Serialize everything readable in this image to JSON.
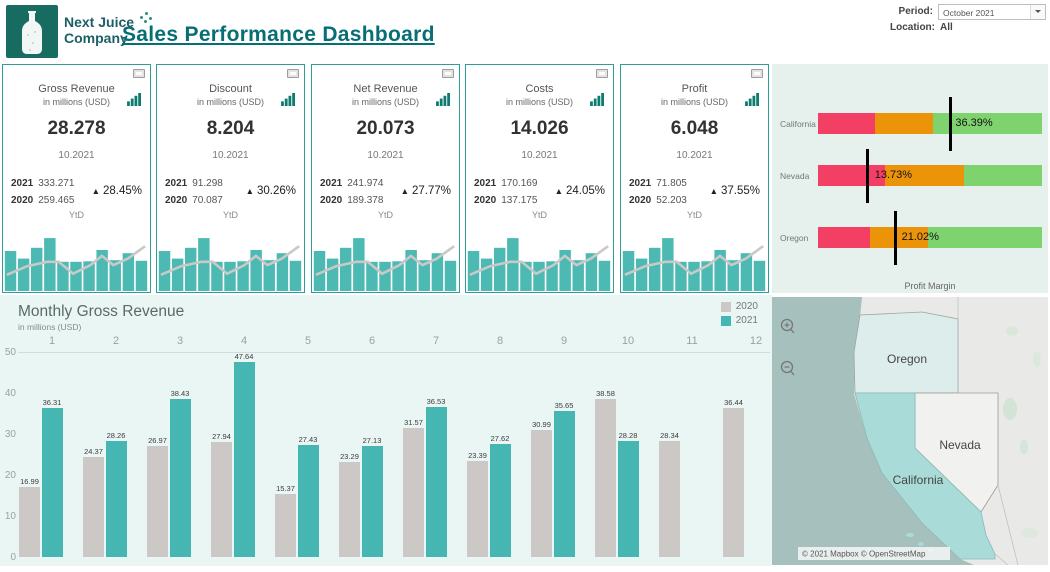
{
  "header": {
    "logo_line1": "Next Juice",
    "logo_line2": "Company",
    "title": "Sales Performance Dashboard",
    "period_label": "Period:",
    "period_value": "October 2021",
    "location_label": "Location:",
    "location_value": "All"
  },
  "colors": {
    "brand_teal": "#086e76",
    "card_border": "#2f9e96",
    "spark_bar": "#4cb9b3",
    "spark_line": "#c9c9c7",
    "bar_2020": "#cbc8c6",
    "bar_2021": "#45b6b1",
    "bullet_pink": "#f23f63",
    "bullet_orange": "#ec9409",
    "bullet_green": "#7ed36f",
    "panel_mint": "#e6f1ee"
  },
  "kpi": {
    "subtitle": "in millions (USD)",
    "date": "10.2021",
    "ytd_label": "YtD",
    "up_icon": "▲",
    "year_labels": [
      "2021",
      "2020"
    ],
    "cards": [
      {
        "title": "Gross Revenue",
        "value": "28.278",
        "y2021": "333.271",
        "y2020": "259.465",
        "delta": "28.45%"
      },
      {
        "title": "Discount",
        "value": "8.204",
        "y2021": "91.298",
        "y2020": "70.087",
        "delta": "30.26%"
      },
      {
        "title": "Net Revenue",
        "value": "20.073",
        "y2021": "241.974",
        "y2020": "189.378",
        "delta": "27.77%"
      },
      {
        "title": "Costs",
        "value": "14.026",
        "y2021": "170.169",
        "y2020": "137.175",
        "delta": "24.05%"
      },
      {
        "title": "Profit",
        "value": "6.048",
        "y2021": "71.805",
        "y2020": "52.203",
        "delta": "37.55%"
      }
    ],
    "sparkline": {
      "bars": [
        0.74,
        0.6,
        0.8,
        0.98,
        0.54,
        0.54,
        0.55,
        0.76,
        0.57,
        0.7,
        0.56
      ],
      "line": [
        [
          0.02,
          0.7
        ],
        [
          0.16,
          0.54
        ],
        [
          0.3,
          0.46
        ],
        [
          0.38,
          0.46
        ],
        [
          0.48,
          0.68
        ],
        [
          0.6,
          0.52
        ],
        [
          0.68,
          0.35
        ],
        [
          0.76,
          0.52
        ],
        [
          0.86,
          0.4
        ],
        [
          0.98,
          0.17
        ]
      ]
    }
  },
  "chart_data": [
    {
      "type": "bar",
      "subtype": "horizontal-stacked-bullet",
      "title": "Profit Margin",
      "categories": [
        "California",
        "Nevada",
        "Oregon"
      ],
      "series": [
        {
          "name": "segment-pink",
          "values_pct": [
            25.5,
            30.0,
            23.0
          ]
        },
        {
          "name": "segment-orange",
          "values_pct": [
            26.0,
            35.0,
            26.0
          ]
        },
        {
          "name": "segment-green",
          "values_pct": [
            48.5,
            35.0,
            51.0
          ]
        }
      ],
      "colors": [
        "#f23f63",
        "#ec9409",
        "#7ed36f"
      ],
      "reference_lines_pct": [
        59,
        22.3,
        34.4
      ],
      "labels": [
        "36.39%",
        "13.73%",
        "21.02%"
      ],
      "label_x_pct": [
        60,
        24,
        36
      ],
      "legend_position": "none"
    },
    {
      "type": "bar",
      "title": "Monthly Gross Revenue",
      "subtitle": "in millions (USD)",
      "categories": [
        1,
        2,
        3,
        4,
        5,
        6,
        7,
        8,
        9,
        10,
        11,
        12
      ],
      "series": [
        {
          "name": "2020",
          "color": "#cbc8c6",
          "values": [
            16.99,
            24.37,
            26.97,
            27.94,
            15.37,
            23.29,
            31.57,
            23.39,
            30.99,
            38.58,
            28.34,
            36.44
          ]
        },
        {
          "name": "2021",
          "color": "#45b6b1",
          "values": [
            36.31,
            28.26,
            38.43,
            47.64,
            27.43,
            27.13,
            36.53,
            27.62,
            35.65,
            28.28,
            null,
            null
          ]
        }
      ],
      "ylim": [
        0,
        50
      ],
      "yticks": [
        0,
        10,
        20,
        30,
        40,
        50
      ],
      "axis_position": "top",
      "legend_position": "top-right",
      "grid": "top-line-only"
    }
  ],
  "map": {
    "states": [
      "Oregon",
      "Nevada",
      "California"
    ],
    "attribution": "© 2021 Mapbox © OpenStreetMap"
  }
}
